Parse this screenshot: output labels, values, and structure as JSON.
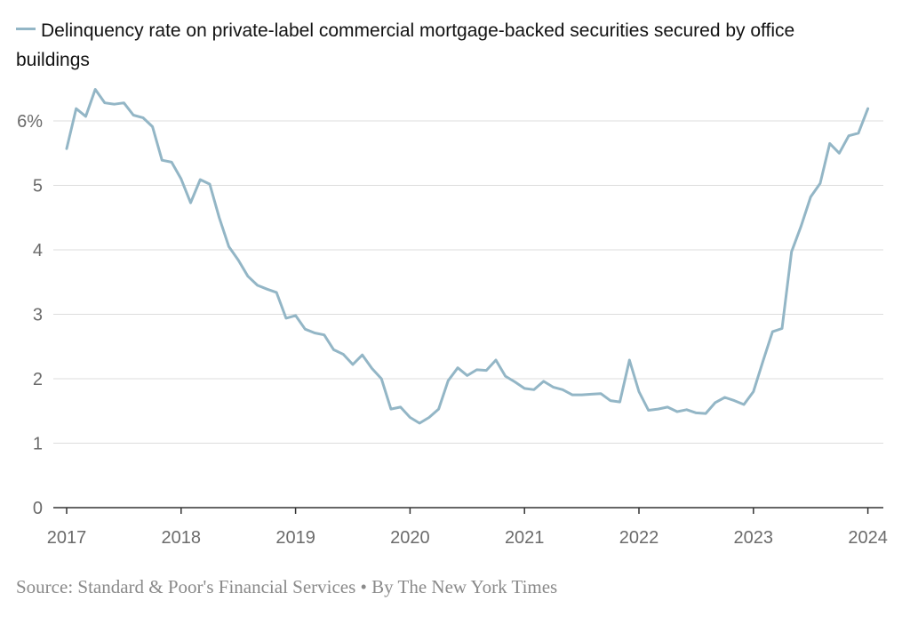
{
  "chart_data": {
    "type": "line",
    "title": "",
    "xlabel": "",
    "ylabel": "",
    "legend": "top-left",
    "grid": true,
    "ylim": [
      0,
      6.5
    ],
    "xlim": [
      2017,
      2024
    ],
    "y_ticks": [
      {
        "value": 0,
        "label": "0"
      },
      {
        "value": 1,
        "label": "1"
      },
      {
        "value": 2,
        "label": "2"
      },
      {
        "value": 3,
        "label": "3"
      },
      {
        "value": 4,
        "label": "4"
      },
      {
        "value": 5,
        "label": "5"
      },
      {
        "value": 6,
        "label": "6%"
      }
    ],
    "x_ticks": [
      {
        "value": 2017,
        "label": "2017"
      },
      {
        "value": 2018,
        "label": "2018"
      },
      {
        "value": 2019,
        "label": "2019"
      },
      {
        "value": 2020,
        "label": "2020"
      },
      {
        "value": 2021,
        "label": "2021"
      },
      {
        "value": 2022,
        "label": "2022"
      },
      {
        "value": 2023,
        "label": "2023"
      },
      {
        "value": 2024,
        "label": "2024"
      }
    ],
    "series": [
      {
        "name": "Delinquency rate on private-label commercial mortgage-backed securities secured by office buildings",
        "color": "#93b6c6",
        "x": [
          2017.0,
          2017.083,
          2017.167,
          2017.25,
          2017.333,
          2017.417,
          2017.5,
          2017.583,
          2017.667,
          2017.75,
          2017.833,
          2017.917,
          2018.0,
          2018.083,
          2018.167,
          2018.25,
          2018.333,
          2018.417,
          2018.5,
          2018.583,
          2018.667,
          2018.75,
          2018.833,
          2018.917,
          2019.0,
          2019.083,
          2019.167,
          2019.25,
          2019.333,
          2019.417,
          2019.5,
          2019.583,
          2019.667,
          2019.75,
          2019.833,
          2019.917,
          2020.0,
          2020.083,
          2020.167,
          2020.25,
          2020.333,
          2020.417,
          2020.5,
          2020.583,
          2020.667,
          2020.75,
          2020.833,
          2020.917,
          2021.0,
          2021.083,
          2021.167,
          2021.25,
          2021.333,
          2021.417,
          2021.5,
          2021.583,
          2021.667,
          2021.75,
          2021.833,
          2021.917,
          2022.0,
          2022.083,
          2022.167,
          2022.25,
          2022.333,
          2022.417,
          2022.5,
          2022.583,
          2022.667,
          2022.75,
          2022.833,
          2022.917,
          2023.0,
          2023.083,
          2023.167,
          2023.25,
          2023.333,
          2023.417,
          2023.5,
          2023.583,
          2023.667,
          2023.75,
          2023.833,
          2023.917,
          2024.0
        ],
        "values": [
          5.57,
          6.19,
          6.07,
          6.49,
          6.28,
          6.26,
          6.28,
          6.09,
          6.05,
          5.91,
          5.39,
          5.36,
          5.1,
          4.73,
          5.09,
          5.02,
          4.5,
          4.05,
          3.84,
          3.59,
          3.45,
          3.39,
          3.34,
          2.94,
          2.98,
          2.77,
          2.71,
          2.68,
          2.45,
          2.38,
          2.22,
          2.37,
          2.16,
          2.0,
          1.53,
          1.56,
          1.4,
          1.31,
          1.4,
          1.53,
          1.97,
          2.17,
          2.05,
          2.14,
          2.13,
          2.29,
          2.04,
          1.95,
          1.85,
          1.83,
          1.96,
          1.87,
          1.83,
          1.75,
          1.75,
          1.76,
          1.77,
          1.66,
          1.64,
          2.29,
          1.8,
          1.51,
          1.53,
          1.56,
          1.49,
          1.52,
          1.47,
          1.46,
          1.63,
          1.71,
          1.66,
          1.6,
          1.8,
          2.27,
          2.73,
          2.78,
          3.97,
          4.37,
          4.82,
          5.03,
          5.65,
          5.5,
          5.77,
          5.81,
          6.19
        ]
      }
    ]
  },
  "legend_label": "Delinquency rate on private-label commercial mortgage-backed securities secured by office buildings",
  "source": "Source: Standard & Poor's Financial Services • By The New York Times"
}
